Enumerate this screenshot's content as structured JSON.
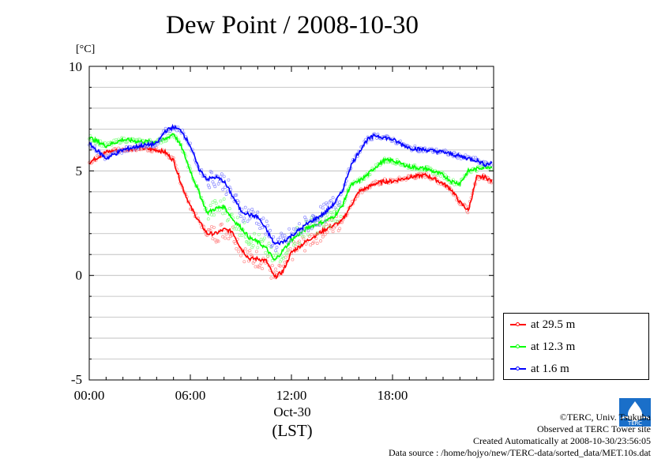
{
  "title": "Dew Point / 2008-10-30",
  "unit_label": "[°C]",
  "y_ticks": [
    "10",
    "5",
    "0",
    "-5"
  ],
  "x_ticks": [
    "00:00",
    "06:00",
    "12:00",
    "18:00"
  ],
  "x_date_label": "Oct-30",
  "x_unit_label": "(LST)",
  "legend": [
    {
      "label": "at 29.5 m",
      "color": "#ff0000"
    },
    {
      "label": "at 12.3 m",
      "color": "#00ff00"
    },
    {
      "label": "at 1.6 m",
      "color": "#0000ff"
    }
  ],
  "credits": {
    "copyright": "©TERC, Univ. Tsukuba",
    "observed": "Observed at TERC Tower site",
    "created": "Created Automatically at 2008-10-30/23:56:05",
    "source": "Data source : /home/hojyo/new/TERC-data/sorted_data/MET.10s.dat"
  },
  "logo_text": "TERC",
  "chart_data": {
    "type": "line",
    "title": "Dew Point / 2008-10-30",
    "xlabel": "(LST)",
    "ylabel": "[°C]",
    "xlim": [
      "00:00",
      "24:00"
    ],
    "ylim": [
      -5,
      10
    ],
    "grid": true,
    "legend_position": "bottom-right outside",
    "x": [
      "00:00",
      "01:00",
      "02:00",
      "03:00",
      "04:00",
      "04:30",
      "05:00",
      "05:30",
      "06:00",
      "06:30",
      "07:00",
      "07:30",
      "08:00",
      "08:30",
      "09:00",
      "09:30",
      "10:00",
      "10:30",
      "11:00",
      "11:30",
      "12:00",
      "13:00",
      "14:00",
      "14:30",
      "15:00",
      "15:30",
      "16:00",
      "16:30",
      "17:00",
      "17:30",
      "18:00",
      "19:00",
      "20:00",
      "21:00",
      "21:30",
      "22:00",
      "22:30",
      "23:00",
      "23:30",
      "23:55"
    ],
    "series": [
      {
        "name": "at 29.5 m",
        "color": "#ff0000",
        "values": [
          5.4,
          5.9,
          6.0,
          6.1,
          6.0,
          5.9,
          5.5,
          4.3,
          3.3,
          2.6,
          2.0,
          2.0,
          2.2,
          2.1,
          1.3,
          0.8,
          0.8,
          0.7,
          -0.1,
          0.2,
          1.1,
          1.7,
          2.2,
          2.4,
          2.6,
          3.3,
          4.0,
          4.2,
          4.4,
          4.5,
          4.5,
          4.7,
          4.8,
          4.4,
          4.1,
          3.5,
          3.1,
          4.7,
          4.7,
          4.5
        ]
      },
      {
        "name": "at 12.3 m",
        "color": "#00ff00",
        "values": [
          6.6,
          6.2,
          6.5,
          6.4,
          6.4,
          6.5,
          6.8,
          6.1,
          5.0,
          4.0,
          3.0,
          3.2,
          3.3,
          2.7,
          2.3,
          1.8,
          1.6,
          1.3,
          0.7,
          1.2,
          1.7,
          2.3,
          2.6,
          2.8,
          3.3,
          4.3,
          4.5,
          4.8,
          5.2,
          5.5,
          5.5,
          5.2,
          5.1,
          4.8,
          4.5,
          4.4,
          5.0,
          5.1,
          5.2,
          5.2
        ]
      },
      {
        "name": "at 1.6 m",
        "color": "#0000ff",
        "values": [
          6.3,
          5.6,
          6.0,
          6.2,
          6.3,
          6.9,
          7.1,
          6.9,
          6.2,
          5.1,
          4.6,
          4.7,
          4.5,
          3.8,
          3.1,
          2.9,
          2.8,
          2.2,
          1.5,
          1.6,
          1.9,
          2.5,
          3.0,
          3.4,
          4.0,
          5.2,
          5.9,
          6.5,
          6.7,
          6.6,
          6.5,
          6.1,
          6.0,
          5.9,
          5.8,
          5.7,
          5.6,
          5.5,
          5.3,
          5.4
        ]
      }
    ]
  }
}
